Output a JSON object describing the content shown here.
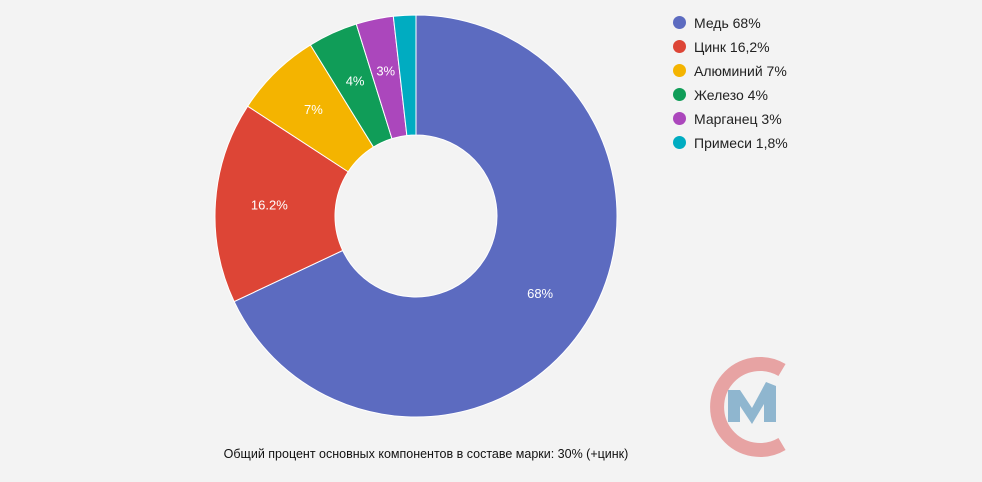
{
  "chart_data": {
    "type": "pie",
    "donut": true,
    "slices": [
      {
        "label": "Медь 68%",
        "value": 68,
        "data_label": "68%",
        "color": "#5c6bc0"
      },
      {
        "label": "Цинк 16,2%",
        "value": 16.2,
        "data_label": "16.2%",
        "color": "#dd4536"
      },
      {
        "label": "Алюминий 7%",
        "value": 7,
        "data_label": "7%",
        "color": "#f4b400"
      },
      {
        "label": "Железо 4%",
        "value": 4,
        "data_label": "4%",
        "color": "#109d58"
      },
      {
        "label": "Марганец 3%",
        "value": 3,
        "data_label": "3%",
        "color": "#ab47bc"
      },
      {
        "label": "Примеси 1,8%",
        "value": 1.8,
        "data_label": "",
        "color": "#00acc1"
      }
    ],
    "legend_position": "right"
  },
  "caption": "Общий процент основных компонентов в составе марки: 30% (+цинк)",
  "logo": {
    "icon": "cm-logo-icon",
    "ring_color": "#e7a3a3",
    "mark_color": "#8fb6cf"
  }
}
